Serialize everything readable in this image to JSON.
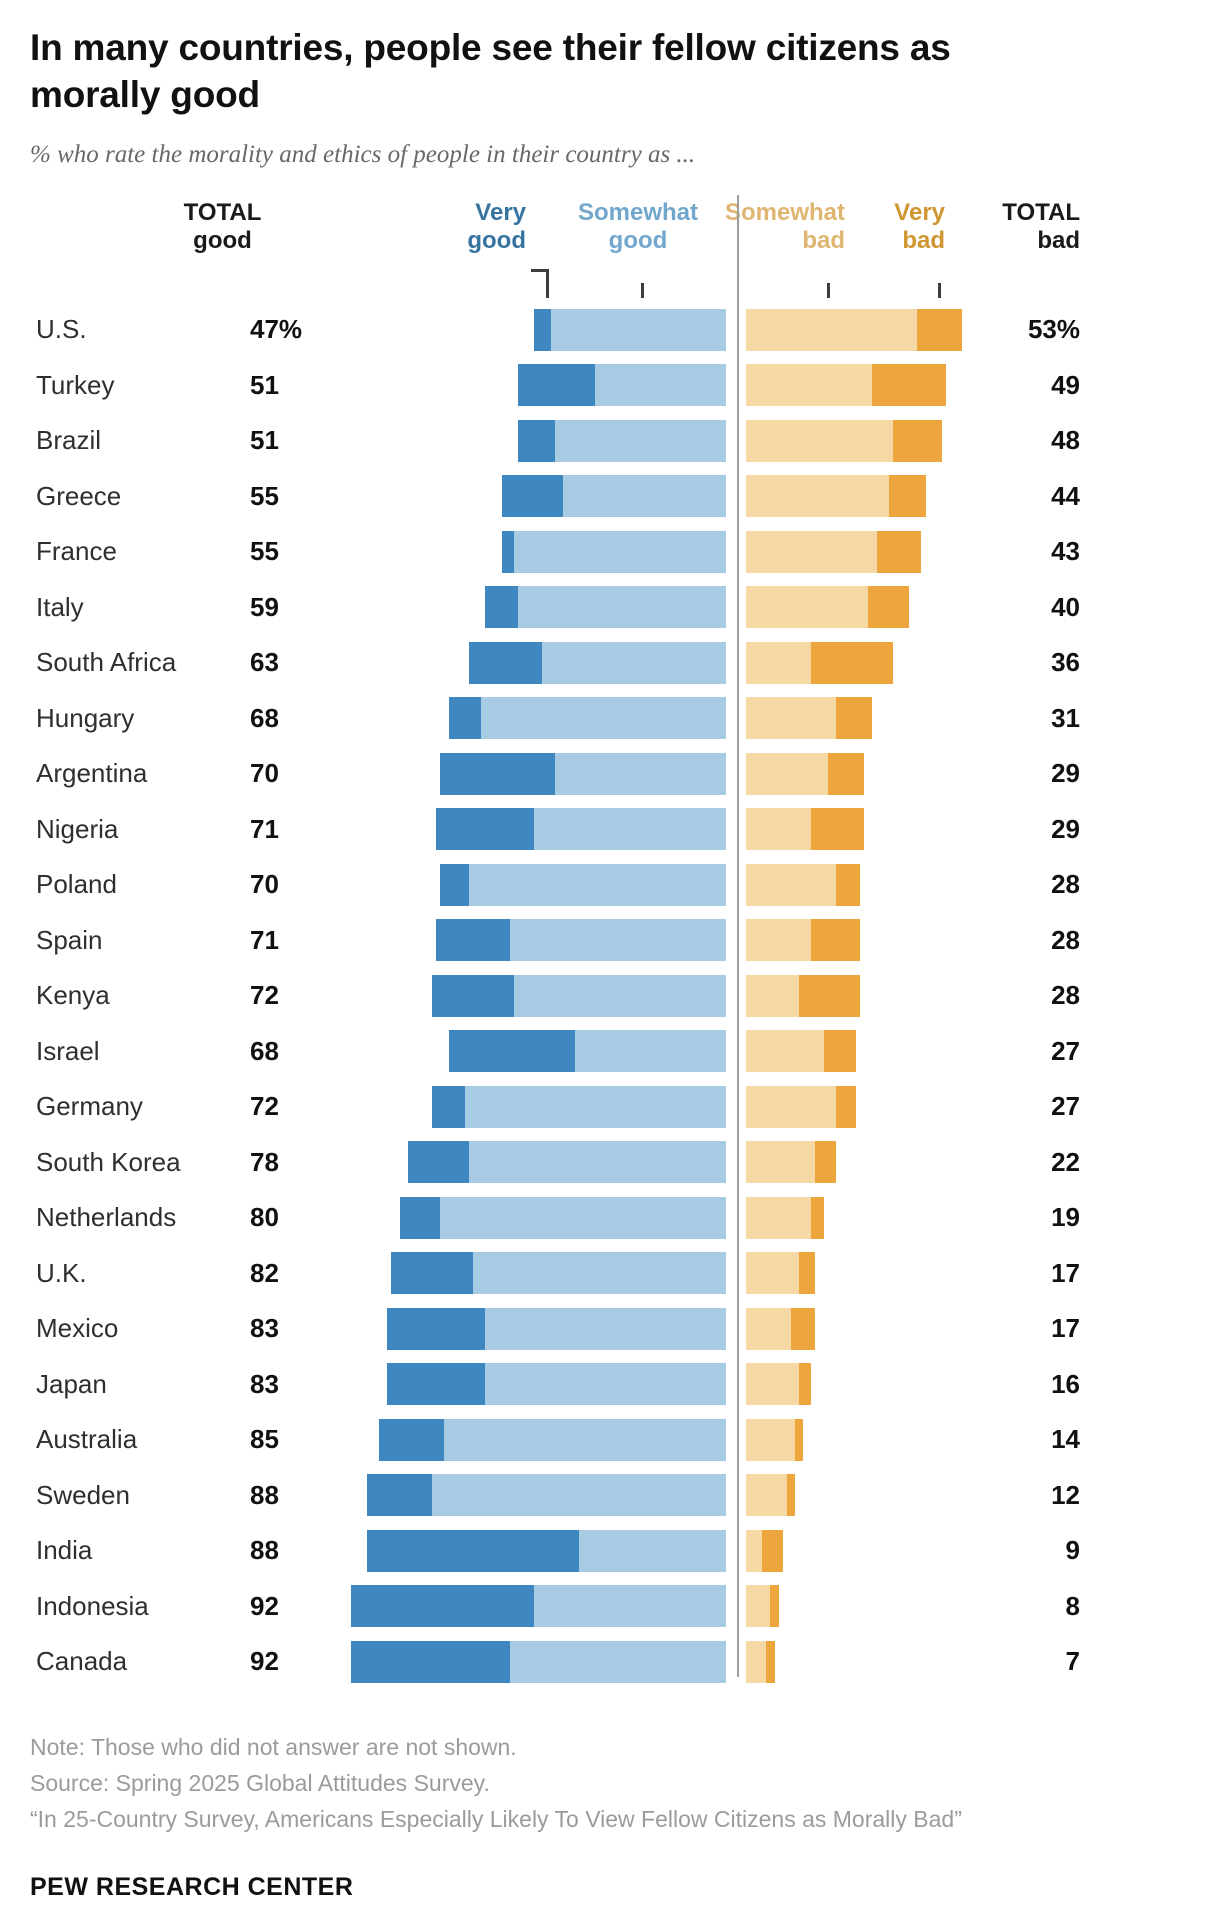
{
  "title_lines": [
    "In many countries, people see their fellow citizens as",
    "morally good"
  ],
  "subtitle": "% who rate the morality and ethics of people in their country as ...",
  "headers": {
    "total_good": "TOTAL\ngood",
    "very_good": "Very\ngood",
    "somewhat_good": "Somewhat\ngood",
    "somewhat_bad": "Somewhat\nbad",
    "very_bad": "Very\nbad",
    "total_bad": "TOTAL\nbad"
  },
  "colors": {
    "very_good": "#3e87c1",
    "somewhat_good": "#a6cbe3",
    "somewhat_bad": "#f6d8a4",
    "very_bad": "#eda63d",
    "divider": "#9f9f9f"
  },
  "chart_data": {
    "type": "bar",
    "subtype": "diverging-stacked-horizontal",
    "title": "In many countries, people see their fellow citizens as morally good",
    "subtitle": "% who rate the morality and ethics of people in their country as ...",
    "legend_position": "top",
    "categories": [
      "U.S.",
      "Turkey",
      "Brazil",
      "Greece",
      "France",
      "Italy",
      "South Africa",
      "Hungary",
      "Argentina",
      "Nigeria",
      "Poland",
      "Spain",
      "Kenya",
      "Israel",
      "Germany",
      "South Korea",
      "Netherlands",
      "U.K.",
      "Mexico",
      "Japan",
      "Australia",
      "Sweden",
      "India",
      "Indonesia",
      "Canada"
    ],
    "series": [
      {
        "name": "Very good",
        "color": "#3e87c1",
        "values": [
          4,
          19,
          9,
          15,
          3,
          8,
          18,
          8,
          28,
          24,
          7,
          18,
          20,
          31,
          8,
          15,
          10,
          20,
          24,
          24,
          16,
          16,
          52,
          45,
          39
        ]
      },
      {
        "name": "Somewhat good",
        "color": "#a6cbe3",
        "values": [
          43,
          32,
          42,
          40,
          52,
          51,
          45,
          60,
          42,
          47,
          63,
          53,
          52,
          37,
          64,
          63,
          70,
          62,
          59,
          59,
          69,
          72,
          36,
          47,
          53
        ]
      },
      {
        "name": "Somewhat bad",
        "color": "#f6d8a4",
        "values": [
          42,
          31,
          36,
          35,
          32,
          30,
          16,
          22,
          20,
          16,
          22,
          16,
          13,
          19,
          22,
          17,
          16,
          13,
          11,
          13,
          12,
          10,
          4,
          6,
          5
        ]
      },
      {
        "name": "Very bad",
        "color": "#eda63d",
        "values": [
          11,
          18,
          12,
          9,
          11,
          10,
          20,
          9,
          9,
          13,
          6,
          12,
          15,
          8,
          5,
          5,
          3,
          4,
          6,
          3,
          2,
          2,
          5,
          2,
          2
        ]
      }
    ],
    "total_good_labels": [
      "47%",
      "51",
      "51",
      "55",
      "55",
      "59",
      "63",
      "68",
      "70",
      "71",
      "70",
      "71",
      "72",
      "68",
      "72",
      "78",
      "80",
      "82",
      "83",
      "83",
      "85",
      "88",
      "88",
      "92",
      "92"
    ],
    "total_bad_labels": [
      "53%",
      "49",
      "48",
      "44",
      "43",
      "40",
      "36",
      "31",
      "29",
      "29",
      "28",
      "28",
      "28",
      "27",
      "27",
      "22",
      "19",
      "17",
      "17",
      "16",
      "14",
      "12",
      "9",
      "8",
      "7"
    ]
  },
  "footer": {
    "note": "Note: Those who did not answer are not shown.",
    "source": "Source: Spring 2025 Global Attitudes Survey.",
    "quote": "“In 25-Country Survey, Americans Especially Likely To View Fellow Citizens as Morally Bad”",
    "brand": "PEW RESEARCH CENTER"
  }
}
